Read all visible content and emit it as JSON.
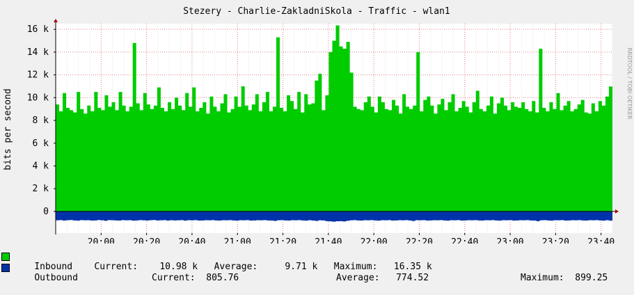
{
  "chart_data": {
    "type": "area",
    "title": "Stezery - Charlie-ZakladniSkola - Traffic - wlan1",
    "ylabel": "bits per second",
    "watermark": "RRDTOOL / TOBI OETIKER",
    "ylim": [
      -1900,
      16500
    ],
    "yticks": [
      0,
      2000,
      4000,
      6000,
      8000,
      10000,
      12000,
      14000,
      16000
    ],
    "ytick_labels": [
      "0",
      "2 k",
      "4 k",
      "6 k",
      "8 k",
      "10 k",
      "12 k",
      "14 k",
      "16 k"
    ],
    "xlim": [
      "19:40",
      "23:45"
    ],
    "xtick_labels": [
      "20:00",
      "20:20",
      "20:40",
      "21:00",
      "21:20",
      "21:40",
      "22:00",
      "22:20",
      "22:40",
      "23:00",
      "23:20",
      "23:40"
    ],
    "grid": true,
    "series": [
      {
        "name": "Inbound",
        "color": "#00cc00",
        "direction": "up",
        "current": "10.98 k",
        "average": "9.71 k",
        "maximum": "16.35 k",
        "values": [
          9400,
          8800,
          10400,
          9100,
          8900,
          8700,
          10500,
          9000,
          8600,
          9300,
          8800,
          10500,
          9100,
          8900,
          10200,
          9200,
          9600,
          8900,
          10500,
          9300,
          8800,
          9200,
          14800,
          9500,
          8900,
          10400,
          9400,
          9000,
          9300,
          10900,
          9100,
          8800,
          9600,
          9000,
          10000,
          9300,
          8900,
          10400,
          9200,
          10900,
          8800,
          9100,
          9600,
          8600,
          10100,
          9200,
          8800,
          9500,
          10300,
          8700,
          9000,
          10100,
          9200,
          11000,
          9300,
          8900,
          9400,
          10300,
          8800,
          9600,
          10500,
          8800,
          9200,
          15300,
          9100,
          8800,
          10200,
          9700,
          9000,
          10500,
          8700,
          10300,
          9400,
          9500,
          11500,
          12100,
          8900,
          10200,
          14000,
          15000,
          16350,
          14500,
          14300,
          14900,
          12200,
          9200,
          9000,
          8900,
          9600,
          10100,
          9200,
          8700,
          10100,
          9600,
          9000,
          8900,
          9800,
          9300,
          8600,
          10300,
          9200,
          9000,
          9300,
          14000,
          8800,
          9800,
          10100,
          9300,
          8600,
          9400,
          9900,
          8900,
          9600,
          10300,
          8800,
          9100,
          9700,
          9200,
          8700,
          9600,
          10600,
          9000,
          8800,
          9300,
          10100,
          8600,
          9500,
          10000,
          9300,
          8900,
          9600,
          9200,
          9100,
          9600,
          9000,
          8800,
          9700,
          8700,
          14300,
          9100,
          8800,
          9600,
          9000,
          10400,
          8900,
          9300,
          9700,
          8800,
          9000,
          9400,
          9800,
          8700,
          8600,
          9500,
          8800,
          9700,
          9300,
          10100,
          10980
        ]
      },
      {
        "name": "Outbound",
        "color": "#0033aa",
        "direction": "down",
        "current": "805.76",
        "average": "774.52",
        "maximum": "899.25",
        "values": [
          780,
          760,
          800,
          770,
          750,
          790,
          810,
          760,
          780,
          770,
          800,
          790,
          750,
          780,
          820,
          760,
          770,
          790,
          800,
          760,
          780,
          770,
          810,
          790,
          760,
          780,
          800,
          770,
          750,
          790,
          780,
          760,
          800,
          770,
          790,
          780,
          760,
          810,
          770,
          780,
          760,
          800,
          790,
          770,
          780,
          760,
          790,
          800,
          770,
          780,
          760,
          790,
          810,
          770,
          780,
          760,
          800,
          790,
          770,
          780,
          760,
          790,
          800,
          830,
          780,
          760,
          790,
          800,
          770,
          780,
          760,
          790,
          810,
          770,
          800,
          830,
          780,
          790,
          850,
          870,
          899,
          860,
          850,
          880,
          820,
          780,
          760,
          790,
          800,
          770,
          780,
          760,
          790,
          810,
          770,
          780,
          760,
          800,
          790,
          770,
          780,
          760,
          790,
          840,
          770,
          780,
          760,
          800,
          790,
          770,
          780,
          760,
          790,
          810,
          770,
          780,
          760,
          800,
          790,
          770,
          780,
          760,
          790,
          800,
          770,
          780,
          760,
          790,
          810,
          770,
          780,
          760,
          800,
          790,
          770,
          780,
          760,
          790,
          800,
          850,
          780,
          760,
          790,
          810,
          770,
          780,
          760,
          800,
          790,
          770,
          780,
          760,
          790,
          800,
          770,
          780,
          760,
          790,
          810,
          770,
          806
        ]
      }
    ]
  },
  "legend": {
    "inbound_label": "Inbound",
    "inbound_stats": "Current:    10.98 k   Average:     9.71 k   Maximum:   16.35 k",
    "outbound_label": "Outbound",
    "outbound_current": "Current:  805.76",
    "outbound_average": "Average:   774.52",
    "outbound_maximum": "Maximum:  899.25"
  }
}
